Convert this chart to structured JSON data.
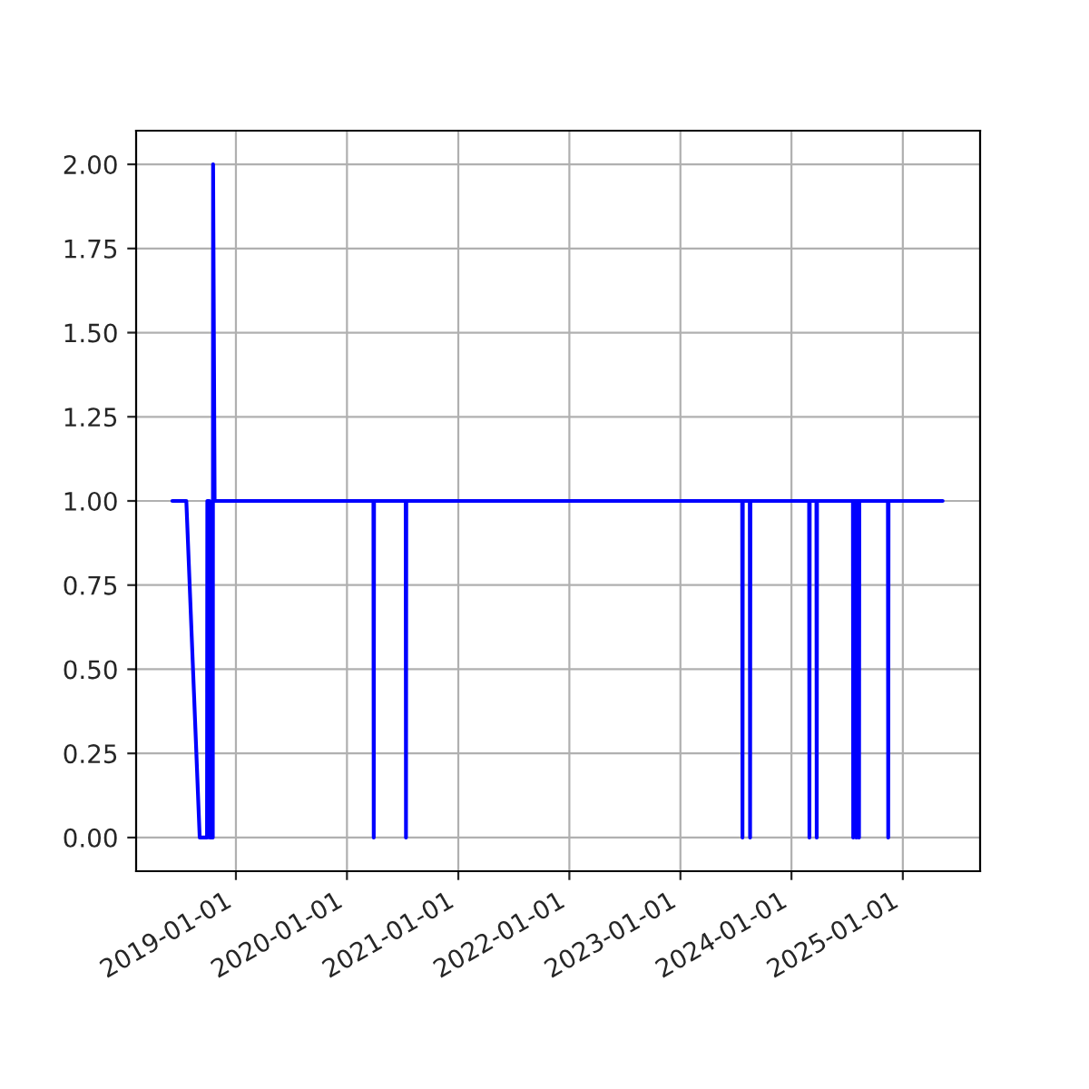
{
  "chart_data": {
    "type": "line",
    "x": [
      "2018-06-06",
      "2018-07-22",
      "2018-09-04",
      "2018-09-28",
      "2018-09-29",
      "2018-10-06",
      "2018-10-07",
      "2018-10-17",
      "2018-10-18",
      "2018-10-23",
      "2020-03-28",
      "2020-03-29",
      "2020-03-30",
      "2020-07-12",
      "2020-07-13",
      "2020-07-14",
      "2023-07-23",
      "2023-07-24",
      "2023-07-25",
      "2023-08-17",
      "2023-08-18",
      "2023-08-19",
      "2024-02-28",
      "2024-02-29",
      "2024-03-01",
      "2024-03-23",
      "2024-03-24",
      "2024-03-25",
      "2024-07-21",
      "2024-07-22",
      "2024-07-23",
      "2024-07-31",
      "2024-08-01",
      "2024-08-02",
      "2024-08-09",
      "2024-08-10",
      "2024-08-11",
      "2024-11-13",
      "2024-11-14",
      "2024-11-15",
      "2025-05-12"
    ],
    "series": [
      {
        "color": "#0000ff",
        "values": [
          1,
          1,
          0,
          0,
          1,
          1,
          0,
          0,
          2,
          1,
          1,
          0,
          1,
          1,
          0,
          1,
          1,
          0,
          1,
          1,
          0,
          1,
          1,
          0,
          1,
          1,
          0,
          1,
          1,
          0,
          1,
          1,
          0,
          1,
          1,
          0,
          1,
          1,
          0,
          1,
          1
        ]
      }
    ],
    "xlim": [
      "2018-02-07",
      "2025-09-12"
    ],
    "xticks": [
      "2019-01-01",
      "2020-01-01",
      "2021-01-01",
      "2022-01-01",
      "2023-01-01",
      "2024-01-01",
      "2025-01-01"
    ],
    "ylim": [
      -0.1,
      2.1
    ],
    "yticks": [
      {
        "value": 0,
        "label": "0.00"
      },
      {
        "value": 0.25,
        "label": "0.25"
      },
      {
        "value": 0.5,
        "label": "0.50"
      },
      {
        "value": 0.75,
        "label": "0.75"
      },
      {
        "value": 1,
        "label": "1.00"
      },
      {
        "value": 1.25,
        "label": "1.25"
      },
      {
        "value": 1.5,
        "label": "1.50"
      },
      {
        "value": 1.75,
        "label": "1.75"
      },
      {
        "value": 2,
        "label": "2.00"
      }
    ],
    "grid": true
  }
}
